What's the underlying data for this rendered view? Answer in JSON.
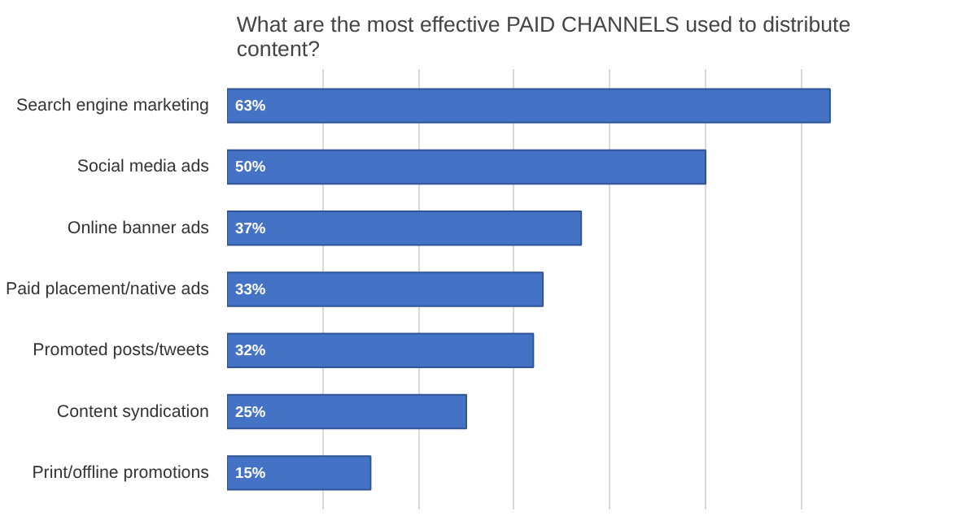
{
  "chart_data": {
    "type": "bar",
    "orientation": "horizontal",
    "title": "What are the most effective PAID CHANNELS used to distribute content?",
    "categories": [
      "Search engine marketing",
      "Social media ads",
      "Online banner ads",
      "Paid placement/native ads",
      "Promoted posts/tweets",
      "Content syndication",
      "Print/offline promotions"
    ],
    "values": [
      63,
      50,
      37,
      33,
      32,
      25,
      15
    ],
    "value_labels": [
      "63%",
      "50%",
      "37%",
      "33%",
      "32%",
      "25%",
      "15%"
    ],
    "color": "#4472c4",
    "grid": "x",
    "tick_labels": "y"
  }
}
